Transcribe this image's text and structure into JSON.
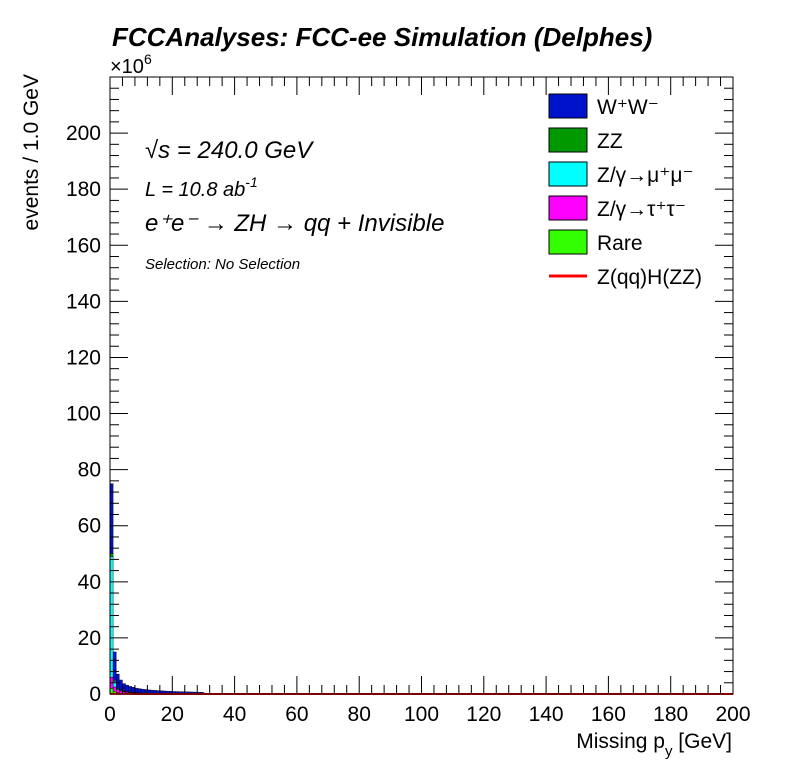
{
  "header": {
    "title": "FCCAnalyses: FCC-ee Simulation (Delphes)"
  },
  "annotations": {
    "energy_prefix": "√s",
    "energy_value": " = 240.0 GeV",
    "lumi_base": "L = 10.8 ab",
    "lumi_exp": "-1",
    "process": "e⁺e⁻ → ZH → qq + Invisible",
    "selection": "Selection: No Selection"
  },
  "chart_data": {
    "type": "stacked-histogram",
    "title": "FCCAnalyses: FCC-ee Simulation (Delphes)",
    "xlabel": "Missing p_y [GeV]",
    "xlabel_main": "Missing p",
    "xlabel_sub": "y",
    "xlabel_unit": " [GeV]",
    "ylabel": "events / 1.0 GeV",
    "y_multiplier": "×10⁶",
    "y_multiplier_base": "×10",
    "y_multiplier_exp": "6",
    "xlim": [
      0,
      200
    ],
    "ylim": [
      0,
      220
    ],
    "bin_width": 1.0,
    "x_ticks": [
      0,
      20,
      40,
      60,
      80,
      100,
      120,
      140,
      160,
      180,
      200
    ],
    "y_ticks": [
      0,
      20,
      40,
      60,
      80,
      100,
      120,
      140,
      160,
      180,
      200
    ],
    "bins_x": [
      0,
      1,
      2,
      3,
      4,
      5,
      6,
      7,
      8,
      9,
      10,
      11,
      12,
      13,
      14,
      15,
      16,
      17,
      18,
      19,
      20,
      21,
      22,
      23,
      24,
      25,
      26,
      27,
      28,
      29,
      30,
      31,
      32,
      33,
      34,
      35,
      36,
      37,
      38,
      39
    ],
    "series": [
      {
        "name": "Rare",
        "legend_base": "Rare",
        "legend_sup": "",
        "color": "#33ff00",
        "values": [
          2.0,
          1.0,
          0.5,
          0.3,
          0.2,
          0.15,
          0.1,
          0.08,
          0.06,
          0.05,
          0.04,
          0.03,
          0.03,
          0.02,
          0.02,
          0.02,
          0.01,
          0.01,
          0.01,
          0.01,
          0.01,
          0.01,
          0.01,
          0.01,
          0.01,
          0.01,
          0.01,
          0.01,
          0.01,
          0.01,
          0.0,
          0.0,
          0.0,
          0.0,
          0.0,
          0.0,
          0.0,
          0.0,
          0.0,
          0.0
        ]
      },
      {
        "name": "Z/γ→τ⁺τ⁻",
        "legend_base": "Z/γ→ττ",
        "legend_sup": "",
        "color": "#ff00ff",
        "values": [
          4.0,
          1.5,
          1.0,
          0.8,
          0.6,
          0.5,
          0.4,
          0.35,
          0.3,
          0.25,
          0.2,
          0.18,
          0.16,
          0.14,
          0.12,
          0.1,
          0.1,
          0.08,
          0.08,
          0.07,
          0.06,
          0.06,
          0.05,
          0.05,
          0.04,
          0.04,
          0.04,
          0.03,
          0.03,
          0.03,
          0.02,
          0.02,
          0.02,
          0.02,
          0.02,
          0.01,
          0.01,
          0.01,
          0.01,
          0.01
        ]
      },
      {
        "name": "Z/γ→μ⁺μ⁻",
        "legend_base": "Z/γ→μμ",
        "legend_sup": "",
        "color": "#00ffff",
        "values": [
          43.0,
          2.0,
          0.3,
          0.2,
          0.15,
          0.1,
          0.1,
          0.08,
          0.06,
          0.05,
          0.04,
          0.04,
          0.03,
          0.03,
          0.02,
          0.02,
          0.02,
          0.02,
          0.01,
          0.01,
          0.01,
          0.01,
          0.01,
          0.01,
          0.01,
          0.01,
          0.01,
          0.0,
          0.0,
          0.0,
          0.0,
          0.0,
          0.0,
          0.0,
          0.0,
          0.0,
          0.0,
          0.0,
          0.0,
          0.0
        ]
      },
      {
        "name": "ZZ",
        "legend_base": "ZZ",
        "legend_sup": "",
        "color": "#009900",
        "values": [
          1.0,
          0.5,
          0.3,
          0.2,
          0.15,
          0.12,
          0.1,
          0.08,
          0.07,
          0.06,
          0.05,
          0.05,
          0.04,
          0.04,
          0.03,
          0.03,
          0.03,
          0.02,
          0.02,
          0.02,
          0.02,
          0.02,
          0.01,
          0.01,
          0.01,
          0.01,
          0.01,
          0.01,
          0.01,
          0.01,
          0.01,
          0.0,
          0.0,
          0.0,
          0.0,
          0.0,
          0.0,
          0.0,
          0.0,
          0.0
        ]
      },
      {
        "name": "W⁺W⁻",
        "legend_base": "WW",
        "legend_sup": "",
        "color": "#0011cc",
        "values": [
          25.0,
          10.0,
          5.0,
          3.5,
          2.6,
          2.3,
          2.0,
          1.8,
          1.6,
          1.5,
          1.4,
          1.3,
          1.2,
          1.15,
          1.1,
          1.05,
          1.0,
          0.95,
          0.9,
          0.85,
          0.8,
          0.78,
          0.75,
          0.72,
          0.7,
          0.68,
          0.65,
          0.63,
          0.6,
          0.58,
          0.3,
          0.25,
          0.2,
          0.18,
          0.15,
          0.12,
          0.1,
          0.08,
          0.06,
          0.05
        ]
      }
    ],
    "legend": {
      "placement": "top-right",
      "order": [
        "W⁺W⁻",
        "ZZ",
        "Z/γ→μ⁺μ⁻",
        "Z/γ→τ⁺τ⁻",
        "Rare",
        "Z(qq)H(ZZ)"
      ]
    },
    "signal": {
      "name": "Z(qq)H(ZZ)",
      "color": "#ff0000",
      "values": [
        0.05,
        0.05,
        0.04,
        0.04,
        0.03,
        0.03,
        0.03,
        0.02,
        0.02,
        0.02
      ]
    }
  }
}
